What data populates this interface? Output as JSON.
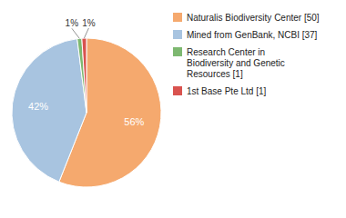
{
  "chart_data": {
    "type": "pie",
    "categories": [
      "Naturalis Biodiversity Center [50]",
      "Mined from GenBank, NCBI [37]",
      "Research Center in\nBiodiversity and Genetic\nResources [1]",
      "1st Base Pte Ltd [1]"
    ],
    "values": [
      56,
      42,
      1,
      1
    ],
    "value_labels": [
      "56%",
      "42%",
      "1%",
      "1%"
    ],
    "colors": [
      "#f5a96e",
      "#a8c4e0",
      "#7db870",
      "#d9534f"
    ],
    "legend": "right",
    "data_labels": true
  }
}
